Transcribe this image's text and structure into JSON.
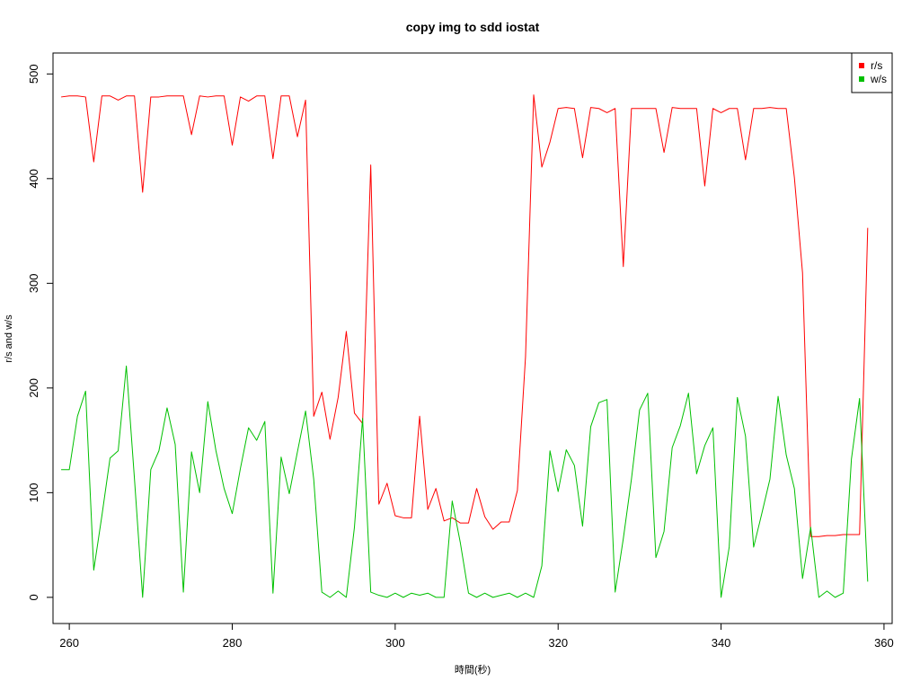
{
  "chart_data": {
    "type": "line",
    "title": "copy img to sdd iostat",
    "xlabel": "時間(秒)",
    "ylabel": "r/s and w/s",
    "xlim": [
      258,
      361
    ],
    "ylim": [
      -25,
      520
    ],
    "xticks": [
      260,
      280,
      300,
      320,
      340,
      360
    ],
    "yticks": [
      0,
      100,
      200,
      300,
      400,
      500
    ],
    "legend_position": "top-right",
    "grid": false,
    "x": [
      259,
      260,
      261,
      262,
      263,
      264,
      265,
      266,
      267,
      268,
      269,
      270,
      271,
      272,
      273,
      274,
      275,
      276,
      277,
      278,
      279,
      280,
      281,
      282,
      283,
      284,
      285,
      286,
      287,
      288,
      289,
      290,
      291,
      292,
      293,
      294,
      295,
      296,
      297,
      298,
      299,
      300,
      301,
      302,
      303,
      304,
      305,
      306,
      307,
      308,
      309,
      310,
      311,
      312,
      313,
      314,
      315,
      316,
      317,
      318,
      319,
      320,
      321,
      322,
      323,
      324,
      325,
      326,
      327,
      328,
      329,
      330,
      331,
      332,
      333,
      334,
      335,
      336,
      337,
      338,
      339,
      340,
      341,
      342,
      343,
      344,
      345,
      346,
      347,
      348,
      349,
      350,
      351,
      352,
      353,
      354,
      355,
      356,
      357,
      358
    ],
    "series": [
      {
        "name": "r/s",
        "color": "#ff0000",
        "values": [
          478,
          479,
          479,
          478,
          416,
          479,
          479,
          475,
          479,
          479,
          387,
          478,
          478,
          479,
          479,
          479,
          442,
          479,
          478,
          479,
          479,
          432,
          478,
          474,
          479,
          479,
          419,
          479,
          479,
          440,
          475,
          173,
          196,
          151,
          191,
          254,
          176,
          166,
          413,
          89,
          109,
          78,
          76,
          76,
          173,
          84,
          104,
          73,
          76,
          71,
          71,
          104,
          77,
          65,
          72,
          72,
          102,
          230,
          480,
          411,
          435,
          467,
          468,
          467,
          420,
          468,
          467,
          463,
          467,
          316,
          467,
          467,
          467,
          467,
          425,
          468,
          467,
          467,
          467,
          393,
          467,
          463,
          467,
          467,
          418,
          467,
          467,
          468,
          467,
          467,
          401,
          310,
          58,
          58,
          59,
          59,
          60,
          60,
          60,
          353
        ]
      },
      {
        "name": "w/s",
        "color": "#00c000",
        "values": [
          122,
          122,
          173,
          197,
          26,
          78,
          133,
          140,
          221,
          113,
          0,
          122,
          140,
          181,
          146,
          5,
          139,
          100,
          187,
          140,
          104,
          80,
          123,
          162,
          150,
          168,
          4,
          134,
          99,
          139,
          178,
          113,
          5,
          0,
          6,
          0,
          67,
          171,
          5,
          2,
          0,
          4,
          0,
          4,
          2,
          4,
          0,
          0,
          92,
          52,
          4,
          0,
          4,
          0,
          2,
          4,
          0,
          4,
          0,
          30,
          140,
          101,
          141,
          126,
          68,
          163,
          186,
          189,
          5,
          56,
          113,
          179,
          195,
          38,
          63,
          143,
          164,
          195,
          118,
          145,
          162,
          0,
          48,
          191,
          154,
          48,
          80,
          113,
          192,
          136,
          104,
          18,
          67,
          0,
          6,
          0,
          4,
          132,
          190,
          15
        ]
      }
    ]
  }
}
